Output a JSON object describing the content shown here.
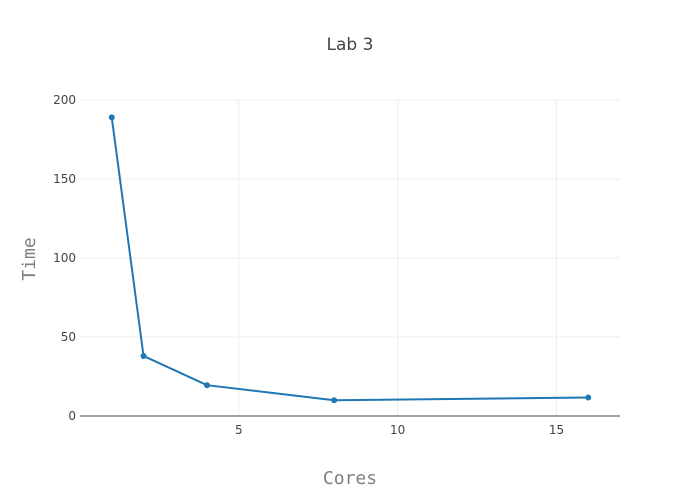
{
  "chart_data": {
    "type": "line",
    "title": "Lab 3",
    "xlabel": "Cores",
    "ylabel": "Time",
    "xlim": [
      0,
      17
    ],
    "ylim": [
      0,
      200
    ],
    "xticks": [
      5,
      10,
      15
    ],
    "yticks": [
      0,
      50,
      100,
      150,
      200
    ],
    "grid": true,
    "legend": "none",
    "line_color": "#1f77b4",
    "series": [
      {
        "x": [
          1,
          2,
          4,
          8,
          16
        ],
        "y": [
          189,
          38,
          19.5,
          10,
          11.7
        ]
      }
    ]
  }
}
